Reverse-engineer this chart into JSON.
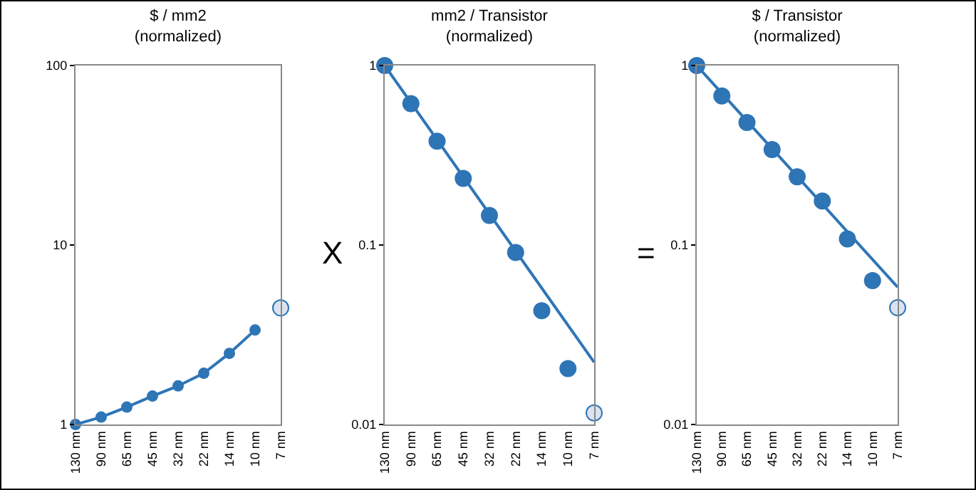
{
  "chart_data": [
    {
      "type": "line",
      "title": "$ / mm2\n(normalized)",
      "categories": [
        "130 nm",
        "90 nm",
        "65 nm",
        "45 nm",
        "32 nm",
        "22 nm",
        "14 nm",
        "10 nm",
        "7 nm"
      ],
      "marker": "circle",
      "line_style": "solid",
      "log": true,
      "grid": false,
      "ylim": [
        1,
        100
      ],
      "yticks": [
        1,
        10,
        100
      ],
      "series": [
        {
          "color": "#2e75b6",
          "values": [
            1,
            1.1,
            1.25,
            1.44,
            1.64,
            1.93,
            2.49,
            3.36,
            null
          ]
        },
        {
          "type": "scatter",
          "x": [
            "7 nm"
          ],
          "values": [
            4.46
          ],
          "color": "#dce3ef"
        }
      ]
    },
    {
      "type": "scatter",
      "title": "mm2 / Transistor\n(normalized)",
      "annotations": [
        "X"
      ],
      "categories": [
        "130 nm",
        "90 nm",
        "65 nm",
        "45 nm",
        "32 nm",
        "22 nm",
        "14 nm",
        "10 nm",
        "7 nm"
      ],
      "marker": "circle",
      "log": true,
      "grid": false,
      "ylim": [
        0.01,
        1
      ],
      "yticks": [
        0.01,
        0.1,
        1
      ],
      "series": [
        {
          "color": "#2e75b6",
          "values": [
            1,
            0.613,
            0.379,
            0.235,
            0.146,
            0.0909,
            0.043,
            0.0205,
            null
          ]
        },
        {
          "type": "line",
          "x": [
            "130 nm",
            "7 nm"
          ],
          "values": [
            1,
            0.0222
          ],
          "color": "#2e75b6",
          "marker": "none"
        },
        {
          "x": [
            "7 nm"
          ],
          "values": [
            0.0116
          ],
          "color": "#dce3ef"
        }
      ]
    },
    {
      "type": "scatter",
      "title": "$ / Transistor\n(normalized)",
      "annotations": [
        "="
      ],
      "categories": [
        "130 nm",
        "90 nm",
        "65 nm",
        "45 nm",
        "32 nm",
        "22 nm",
        "14 nm",
        "10 nm",
        "7 nm"
      ],
      "marker": "circle",
      "log": true,
      "grid": false,
      "ylim": [
        0.01,
        1
      ],
      "yticks": [
        0.01,
        0.1,
        1
      ],
      "series": [
        {
          "color": "#2e75b6",
          "values": [
            1,
            0.677,
            0.481,
            0.34,
            0.24,
            0.176,
            0.108,
            0.0633,
            null
          ]
        },
        {
          "type": "line",
          "x": [
            "130 nm",
            "7 nm"
          ],
          "values": [
            1,
            0.0582
          ],
          "color": "#2e75b6",
          "marker": "none"
        },
        {
          "x": [
            "7 nm"
          ],
          "values": [
            0.0447
          ],
          "color": "#dce3ef"
        }
      ]
    }
  ]
}
